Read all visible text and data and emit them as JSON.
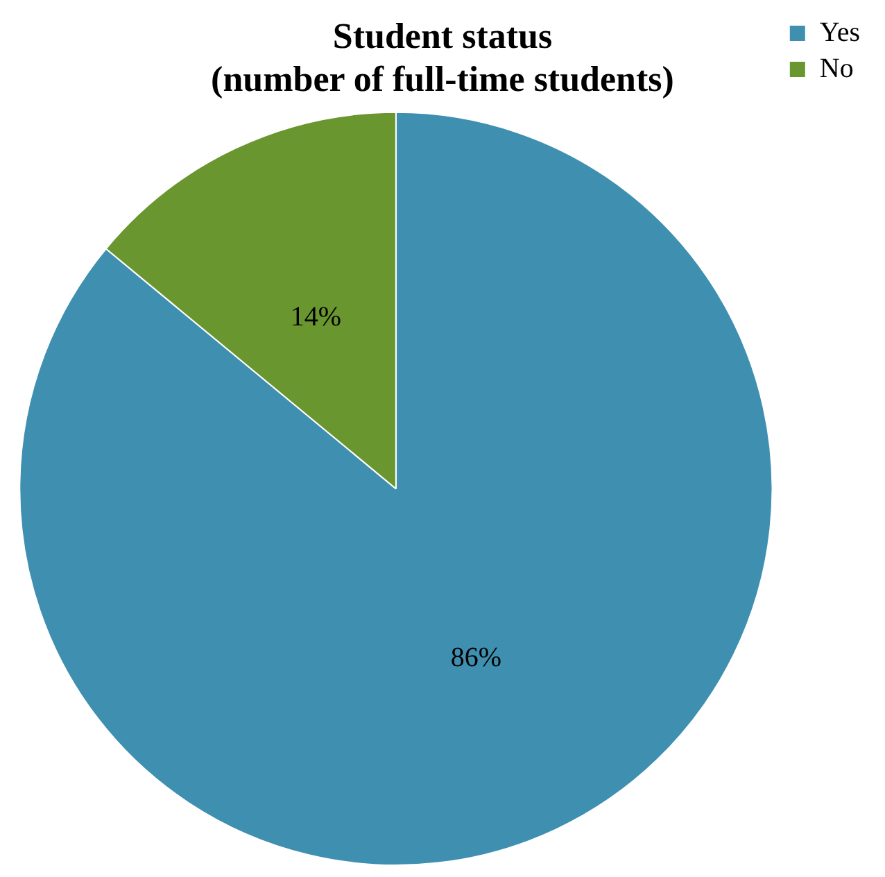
{
  "chart_data": {
    "type": "pie",
    "title": "Student status\n(number of full-time students)",
    "categories": [
      "Yes",
      "No"
    ],
    "values": [
      86,
      14
    ],
    "colors": [
      "#3f8fb0",
      "#6a962f"
    ],
    "value_labels": [
      "86%",
      "14%"
    ],
    "legend": "right"
  }
}
